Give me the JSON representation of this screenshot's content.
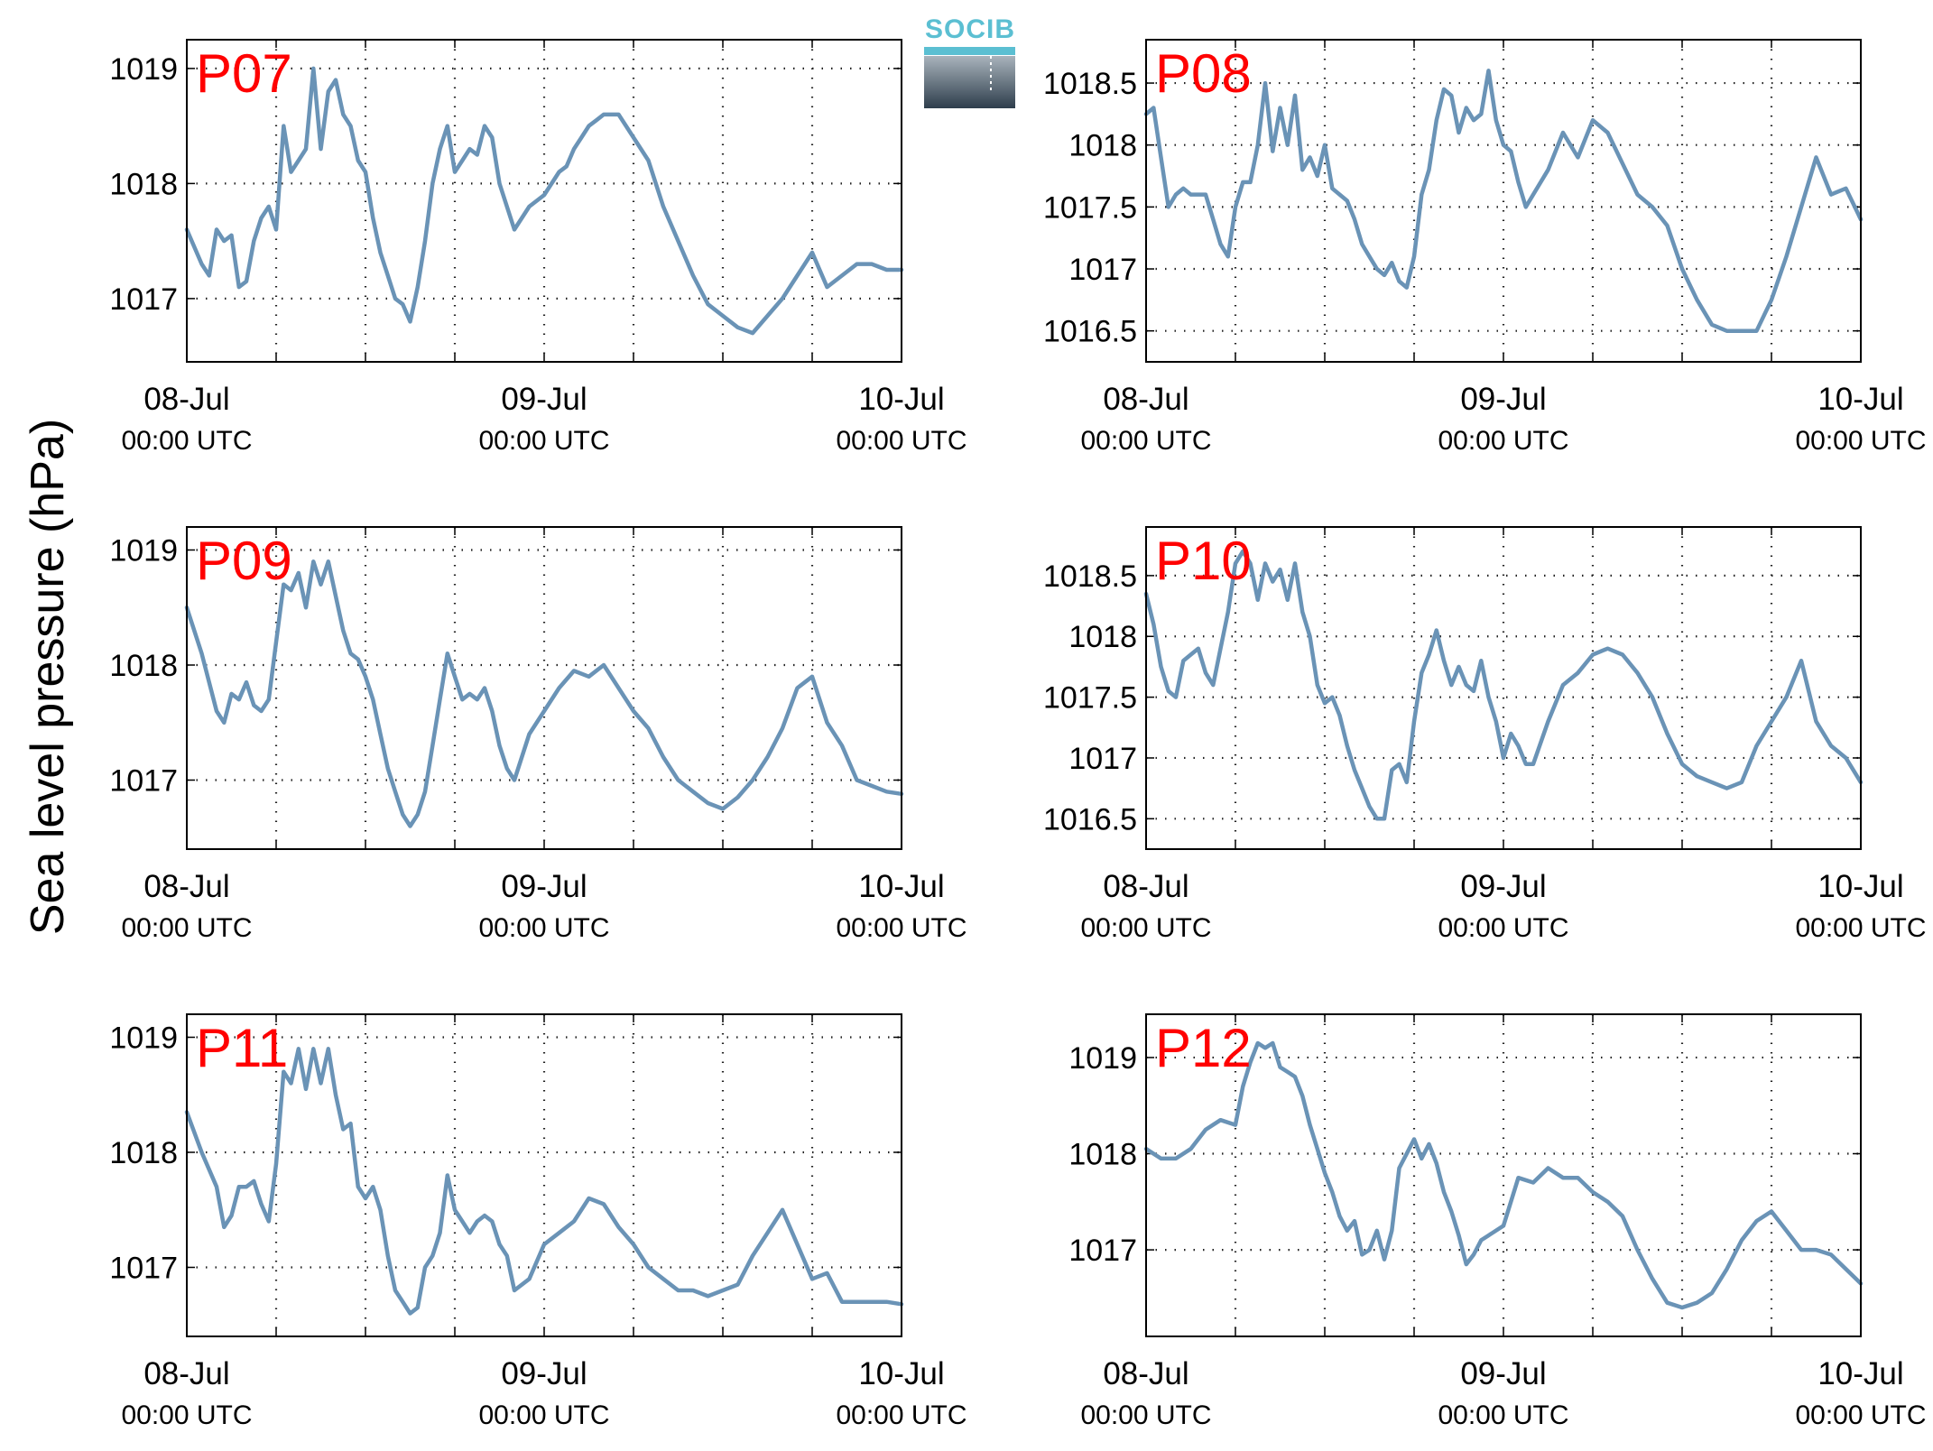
{
  "figure": {
    "ylabel": "Sea level pressure (hPa)",
    "logo_text": "SOCIB"
  },
  "colors": {
    "line": "#6a93b6",
    "panel_label": "#ff0000",
    "logo_text": "#5bbfd2",
    "logo_dark": "#2e3e4c",
    "logo_light": "#a9b3bc"
  },
  "chart_data": [
    {
      "type": "line",
      "panel": "P07",
      "x_axis": {
        "start": "08-Jul 00:00 UTC",
        "end": "10-Jul 00:00 UTC",
        "unit": "hours since 08-Jul 00:00 UTC",
        "range": [
          0,
          48
        ],
        "grid_step_h": 6
      },
      "xticks": [
        {
          "date": "08-Jul",
          "time": "00:00 UTC",
          "x": 0
        },
        {
          "date": "09-Jul",
          "time": "00:00 UTC",
          "x": 24
        },
        {
          "date": "10-Jul",
          "time": "00:00 UTC",
          "x": 48
        }
      ],
      "ylim": [
        1016.45,
        1019.25
      ],
      "yticks": [
        "1017",
        "1018",
        "1019"
      ],
      "grid": true,
      "x": [
        0,
        1,
        1.5,
        2,
        2.5,
        3,
        3.5,
        4,
        4.5,
        5,
        5.5,
        6,
        6.5,
        7,
        7.5,
        8,
        8.5,
        9,
        9.5,
        10,
        10.5,
        11,
        11.5,
        12,
        12.5,
        13,
        13.5,
        14,
        14.5,
        15,
        15.5,
        16,
        16.5,
        17,
        17.5,
        18,
        18.5,
        19,
        19.5,
        20,
        20.5,
        21,
        22,
        23,
        24,
        25,
        25.5,
        26,
        26.5,
        27,
        27.5,
        28,
        29,
        30,
        31,
        32,
        33,
        34,
        35,
        36,
        37,
        38,
        39,
        40,
        41,
        42,
        43,
        44,
        45,
        46,
        47,
        48
      ],
      "y": [
        1017.6,
        1017.3,
        1017.2,
        1017.6,
        1017.5,
        1017.55,
        1017.1,
        1017.15,
        1017.5,
        1017.7,
        1017.8,
        1017.6,
        1018.5,
        1018.1,
        1018.2,
        1018.3,
        1019.0,
        1018.3,
        1018.8,
        1018.9,
        1018.6,
        1018.5,
        1018.2,
        1018.1,
        1017.7,
        1017.4,
        1017.2,
        1017.0,
        1016.95,
        1016.8,
        1017.1,
        1017.5,
        1018.0,
        1018.3,
        1018.5,
        1018.1,
        1018.2,
        1018.3,
        1018.25,
        1018.5,
        1018.4,
        1018.0,
        1017.6,
        1017.8,
        1017.9,
        1018.1,
        1018.15,
        1018.3,
        1018.4,
        1018.5,
        1018.55,
        1018.6,
        1018.6,
        1018.4,
        1018.2,
        1017.8,
        1017.5,
        1017.2,
        1016.95,
        1016.85,
        1016.75,
        1016.7,
        1016.85,
        1017.0,
        1017.2,
        1017.4,
        1017.1,
        1017.2,
        1017.3,
        1017.3,
        1017.25,
        1017.25
      ]
    },
    {
      "type": "line",
      "panel": "P08",
      "x_axis": {
        "start": "08-Jul 00:00 UTC",
        "end": "10-Jul 00:00 UTC",
        "unit": "hours since 08-Jul 00:00 UTC",
        "range": [
          0,
          48
        ],
        "grid_step_h": 6
      },
      "xticks": [
        {
          "date": "08-Jul",
          "time": "00:00 UTC",
          "x": 0
        },
        {
          "date": "09-Jul",
          "time": "00:00 UTC",
          "x": 24
        },
        {
          "date": "10-Jul",
          "time": "00:00 UTC",
          "x": 48
        }
      ],
      "ylim": [
        1016.25,
        1018.85
      ],
      "yticks": [
        "1016.5",
        "1017",
        "1017.5",
        "1018",
        "1018.5"
      ],
      "grid": true,
      "x": [
        0,
        0.5,
        1,
        1.5,
        2,
        2.5,
        3,
        3.5,
        4,
        4.5,
        5,
        5.5,
        6,
        6.5,
        7,
        7.5,
        8,
        8.5,
        9,
        9.5,
        10,
        10.5,
        11,
        11.5,
        12,
        12.5,
        13,
        13.5,
        14,
        14.5,
        15,
        15.5,
        16,
        16.5,
        17,
        17.5,
        18,
        18.5,
        19,
        19.5,
        20,
        20.5,
        21,
        21.5,
        22,
        22.5,
        23,
        23.5,
        24,
        24.5,
        25,
        25.5,
        26,
        27,
        28,
        29,
        30,
        31,
        32,
        33,
        34,
        35,
        36,
        37,
        38,
        39,
        40,
        41,
        42,
        43,
        44,
        45,
        46,
        47,
        48
      ],
      "y": [
        1018.25,
        1018.3,
        1017.9,
        1017.5,
        1017.6,
        1017.65,
        1017.6,
        1017.6,
        1017.6,
        1017.4,
        1017.2,
        1017.1,
        1017.5,
        1017.7,
        1017.7,
        1018.0,
        1018.5,
        1017.95,
        1018.3,
        1018.0,
        1018.4,
        1017.8,
        1017.9,
        1017.75,
        1018.0,
        1017.65,
        1017.6,
        1017.55,
        1017.4,
        1017.2,
        1017.1,
        1017.0,
        1016.95,
        1017.05,
        1016.9,
        1016.85,
        1017.1,
        1017.6,
        1017.8,
        1018.2,
        1018.45,
        1018.4,
        1018.1,
        1018.3,
        1018.2,
        1018.25,
        1018.6,
        1018.2,
        1018.0,
        1017.95,
        1017.7,
        1017.5,
        1017.6,
        1017.8,
        1018.1,
        1017.9,
        1018.2,
        1018.1,
        1017.85,
        1017.6,
        1017.5,
        1017.35,
        1017.0,
        1016.75,
        1016.55,
        1016.5,
        1016.5,
        1016.5,
        1016.75,
        1017.1,
        1017.5,
        1017.9,
        1017.6,
        1017.65,
        1017.4
      ]
    },
    {
      "type": "line",
      "panel": "P09",
      "x_axis": {
        "start": "08-Jul 00:00 UTC",
        "end": "10-Jul 00:00 UTC",
        "unit": "hours since 08-Jul 00:00 UTC",
        "range": [
          0,
          48
        ],
        "grid_step_h": 6
      },
      "xticks": [
        {
          "date": "08-Jul",
          "time": "00:00 UTC",
          "x": 0
        },
        {
          "date": "09-Jul",
          "time": "00:00 UTC",
          "x": 24
        },
        {
          "date": "10-Jul",
          "time": "00:00 UTC",
          "x": 48
        }
      ],
      "ylim": [
        1016.4,
        1019.2
      ],
      "yticks": [
        "1017",
        "1018",
        "1019"
      ],
      "grid": true,
      "x": [
        0,
        1,
        2,
        2.5,
        3,
        3.5,
        4,
        4.5,
        5,
        5.5,
        6,
        6.5,
        7,
        7.5,
        8,
        8.5,
        9,
        9.5,
        10,
        10.5,
        11,
        11.5,
        12,
        12.5,
        13,
        13.5,
        14,
        14.5,
        15,
        15.5,
        16,
        16.5,
        17,
        17.5,
        18,
        18.5,
        19,
        19.5,
        20,
        20.5,
        21,
        21.5,
        22,
        23,
        24,
        25,
        26,
        27,
        28,
        29,
        30,
        31,
        32,
        33,
        34,
        35,
        36,
        37,
        38,
        39,
        40,
        41,
        42,
        43,
        44,
        45,
        46,
        47,
        48
      ],
      "y": [
        1018.5,
        1018.1,
        1017.6,
        1017.5,
        1017.75,
        1017.7,
        1017.85,
        1017.65,
        1017.6,
        1017.7,
        1018.2,
        1018.7,
        1018.65,
        1018.8,
        1018.5,
        1018.9,
        1018.7,
        1018.9,
        1018.6,
        1018.3,
        1018.1,
        1018.05,
        1017.9,
        1017.7,
        1017.4,
        1017.1,
        1016.9,
        1016.7,
        1016.6,
        1016.7,
        1016.9,
        1017.3,
        1017.7,
        1018.1,
        1017.9,
        1017.7,
        1017.75,
        1017.7,
        1017.8,
        1017.6,
        1017.3,
        1017.1,
        1017.0,
        1017.4,
        1017.6,
        1017.8,
        1017.95,
        1017.9,
        1018.0,
        1017.8,
        1017.6,
        1017.45,
        1017.2,
        1017.0,
        1016.9,
        1016.8,
        1016.75,
        1016.85,
        1017.0,
        1017.2,
        1017.45,
        1017.8,
        1017.9,
        1017.5,
        1017.3,
        1017.0,
        1016.95,
        1016.9,
        1016.88
      ]
    },
    {
      "type": "line",
      "panel": "P10",
      "x_axis": {
        "start": "08-Jul 00:00 UTC",
        "end": "10-Jul 00:00 UTC",
        "unit": "hours since 08-Jul 00:00 UTC",
        "range": [
          0,
          48
        ],
        "grid_step_h": 6
      },
      "xticks": [
        {
          "date": "08-Jul",
          "time": "00:00 UTC",
          "x": 0
        },
        {
          "date": "09-Jul",
          "time": "00:00 UTC",
          "x": 24
        },
        {
          "date": "10-Jul",
          "time": "00:00 UTC",
          "x": 48
        }
      ],
      "ylim": [
        1016.25,
        1018.9
      ],
      "yticks": [
        "1016.5",
        "1017",
        "1017.5",
        "1018",
        "1018.5"
      ],
      "grid": true,
      "x": [
        0,
        0.5,
        1,
        1.5,
        2,
        2.5,
        3,
        3.5,
        4,
        4.5,
        5,
        5.5,
        6,
        6.5,
        7,
        7.5,
        8,
        8.5,
        9,
        9.5,
        10,
        10.5,
        11,
        11.5,
        12,
        12.5,
        13,
        13.5,
        14,
        14.5,
        15,
        15.5,
        16,
        16.5,
        17,
        17.5,
        18,
        18.5,
        19,
        19.5,
        20,
        20.5,
        21,
        21.5,
        22,
        22.5,
        23,
        23.5,
        24,
        24.5,
        25,
        25.5,
        26,
        27,
        28,
        29,
        30,
        31,
        32,
        33,
        34,
        35,
        36,
        37,
        38,
        39,
        40,
        41,
        42,
        43,
        44,
        45,
        46,
        47,
        48
      ],
      "y": [
        1018.35,
        1018.1,
        1017.75,
        1017.55,
        1017.5,
        1017.8,
        1017.85,
        1017.9,
        1017.7,
        1017.6,
        1017.9,
        1018.2,
        1018.6,
        1018.7,
        1018.6,
        1018.3,
        1018.6,
        1018.45,
        1018.55,
        1018.3,
        1018.6,
        1018.2,
        1018.0,
        1017.6,
        1017.45,
        1017.5,
        1017.35,
        1017.1,
        1016.9,
        1016.75,
        1016.6,
        1016.5,
        1016.5,
        1016.9,
        1016.95,
        1016.8,
        1017.3,
        1017.7,
        1017.85,
        1018.05,
        1017.8,
        1017.6,
        1017.75,
        1017.6,
        1017.55,
        1017.8,
        1017.5,
        1017.3,
        1017.0,
        1017.2,
        1017.1,
        1016.95,
        1016.95,
        1017.3,
        1017.6,
        1017.7,
        1017.85,
        1017.9,
        1017.85,
        1017.7,
        1017.5,
        1017.2,
        1016.95,
        1016.85,
        1016.8,
        1016.75,
        1016.8,
        1017.1,
        1017.3,
        1017.5,
        1017.8,
        1017.3,
        1017.1,
        1017.0,
        1016.8
      ]
    },
    {
      "type": "line",
      "panel": "P11",
      "x_axis": {
        "start": "08-Jul 00:00 UTC",
        "end": "10-Jul 00:00 UTC",
        "unit": "hours since 08-Jul 00:00 UTC",
        "range": [
          0,
          48
        ],
        "grid_step_h": 6
      },
      "xticks": [
        {
          "date": "08-Jul",
          "time": "00:00 UTC",
          "x": 0
        },
        {
          "date": "09-Jul",
          "time": "00:00 UTC",
          "x": 24
        },
        {
          "date": "10-Jul",
          "time": "00:00 UTC",
          "x": 48
        }
      ],
      "ylim": [
        1016.4,
        1019.2
      ],
      "yticks": [
        "1017",
        "1018",
        "1019"
      ],
      "grid": true,
      "x": [
        0,
        1,
        2,
        2.5,
        3,
        3.5,
        4,
        4.5,
        5,
        5.5,
        6,
        6.5,
        7,
        7.5,
        8,
        8.5,
        9,
        9.5,
        10,
        10.5,
        11,
        11.5,
        12,
        12.5,
        13,
        13.5,
        14,
        14.5,
        15,
        15.5,
        16,
        16.5,
        17,
        17.5,
        18,
        18.5,
        19,
        19.5,
        20,
        20.5,
        21,
        21.5,
        22,
        23,
        24,
        25,
        26,
        27,
        28,
        29,
        30,
        31,
        32,
        33,
        34,
        35,
        36,
        37,
        38,
        39,
        40,
        41,
        42,
        43,
        44,
        45,
        46,
        47,
        48
      ],
      "y": [
        1018.35,
        1018.0,
        1017.7,
        1017.35,
        1017.45,
        1017.7,
        1017.7,
        1017.75,
        1017.55,
        1017.4,
        1017.9,
        1018.7,
        1018.6,
        1018.9,
        1018.55,
        1018.9,
        1018.6,
        1018.9,
        1018.5,
        1018.2,
        1018.25,
        1017.7,
        1017.6,
        1017.7,
        1017.5,
        1017.1,
        1016.8,
        1016.7,
        1016.6,
        1016.65,
        1017.0,
        1017.1,
        1017.3,
        1017.8,
        1017.5,
        1017.4,
        1017.3,
        1017.4,
        1017.45,
        1017.4,
        1017.2,
        1017.1,
        1016.8,
        1016.9,
        1017.2,
        1017.3,
        1017.4,
        1017.6,
        1017.55,
        1017.35,
        1017.2,
        1017.0,
        1016.9,
        1016.8,
        1016.8,
        1016.75,
        1016.8,
        1016.85,
        1017.1,
        1017.3,
        1017.5,
        1017.2,
        1016.9,
        1016.95,
        1016.7,
        1016.7,
        1016.7,
        1016.7,
        1016.68
      ]
    },
    {
      "type": "line",
      "panel": "P12",
      "x_axis": {
        "start": "08-Jul 00:00 UTC",
        "end": "10-Jul 00:00 UTC",
        "unit": "hours since 08-Jul 00:00 UTC",
        "range": [
          0,
          48
        ],
        "grid_step_h": 6
      },
      "xticks": [
        {
          "date": "08-Jul",
          "time": "00:00 UTC",
          "x": 0
        },
        {
          "date": "09-Jul",
          "time": "00:00 UTC",
          "x": 24
        },
        {
          "date": "10-Jul",
          "time": "00:00 UTC",
          "x": 48
        }
      ],
      "ylim": [
        1016.1,
        1019.45
      ],
      "yticks": [
        "1017",
        "1018",
        "1019"
      ],
      "grid": true,
      "x": [
        0,
        1,
        2,
        3,
        4,
        5,
        6,
        6.5,
        7,
        7.5,
        8,
        8.5,
        9,
        9.5,
        10,
        10.5,
        11,
        11.5,
        12,
        12.5,
        13,
        13.5,
        14,
        14.5,
        15,
        15.5,
        16,
        16.5,
        17,
        17.5,
        18,
        18.5,
        19,
        19.5,
        20,
        20.5,
        21,
        21.5,
        22,
        22.5,
        23,
        24,
        25,
        26,
        27,
        28,
        29,
        30,
        31,
        32,
        33,
        34,
        35,
        36,
        37,
        38,
        39,
        40,
        41,
        42,
        43,
        44,
        45,
        46,
        47,
        48
      ],
      "y": [
        1018.05,
        1017.95,
        1017.95,
        1018.05,
        1018.25,
        1018.35,
        1018.3,
        1018.7,
        1018.95,
        1019.15,
        1019.1,
        1019.15,
        1018.9,
        1018.85,
        1018.8,
        1018.6,
        1018.3,
        1018.05,
        1017.8,
        1017.6,
        1017.35,
        1017.2,
        1017.3,
        1016.95,
        1017.0,
        1017.2,
        1016.9,
        1017.2,
        1017.85,
        1018.0,
        1018.15,
        1017.95,
        1018.1,
        1017.9,
        1017.6,
        1017.4,
        1017.15,
        1016.85,
        1016.95,
        1017.1,
        1017.15,
        1017.25,
        1017.75,
        1017.7,
        1017.85,
        1017.75,
        1017.75,
        1017.6,
        1017.5,
        1017.35,
        1017.0,
        1016.7,
        1016.45,
        1016.4,
        1016.45,
        1016.55,
        1016.8,
        1017.1,
        1017.3,
        1017.4,
        1017.2,
        1017.0,
        1017.0,
        1016.95,
        1016.8,
        1016.65
      ]
    }
  ]
}
